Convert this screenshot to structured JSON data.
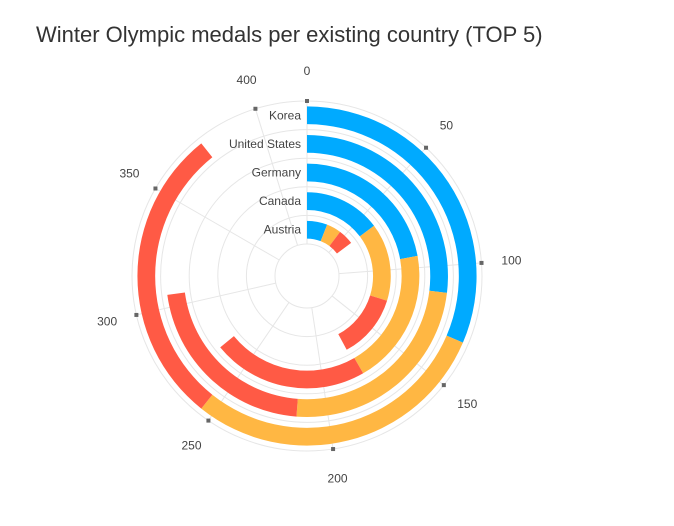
{
  "chart_data": {
    "type": "bar",
    "subtype": "radial-stacked",
    "title": "Winter Olympic medals per existing country (TOP 5)",
    "categories": [
      "Korea",
      "United States",
      "Germany",
      "Canada",
      "Austria"
    ],
    "series": [
      {
        "color": "#00aaff",
        "values": [
          132,
          113,
          93,
          62,
          25
        ]
      },
      {
        "color": "#ffb743",
        "values": [
          123,
          102,
          82,
          63,
          18
        ]
      },
      {
        "color": "#ff5a45",
        "values": [
          120,
          91,
          94,
          52,
          19
        ]
      }
    ],
    "angular_axis": {
      "min": 0,
      "max": 420,
      "ticks": [
        0,
        50,
        100,
        150,
        200,
        250,
        300,
        350,
        400
      ]
    },
    "grid": true,
    "legend": "none"
  }
}
